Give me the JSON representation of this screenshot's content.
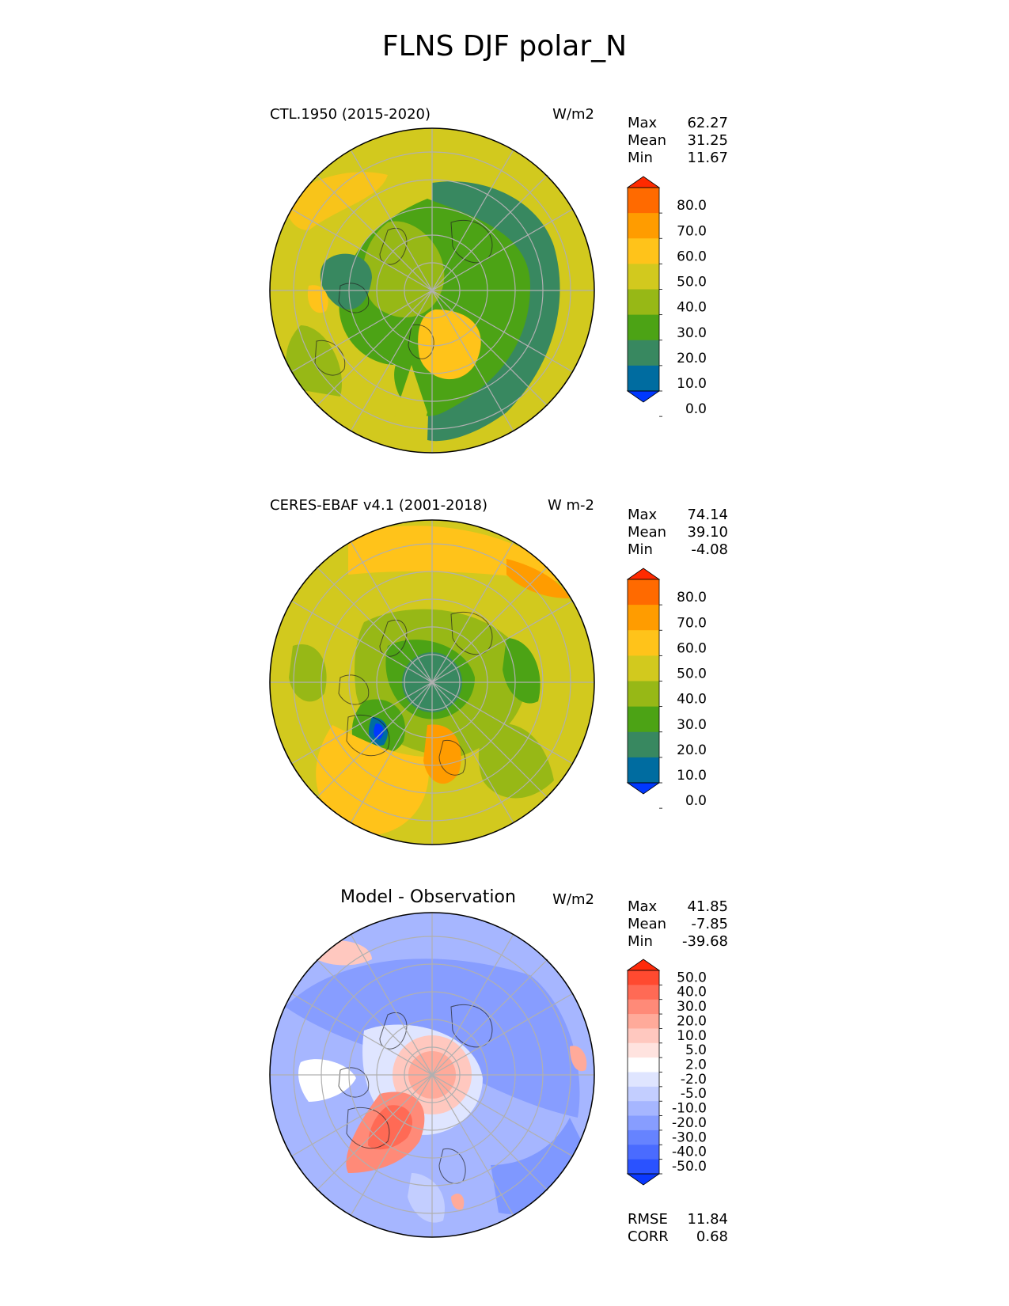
{
  "title": "FLNS DJF polar_N",
  "panels": [
    {
      "subtitle": "CTL.1950 (2015-2020)",
      "units": "W/m2",
      "stats": [
        {
          "label": "Max",
          "value": "62.27"
        },
        {
          "label": "Mean",
          "value": "31.25"
        },
        {
          "label": "Min",
          "value": "11.67"
        }
      ],
      "colorbar": {
        "ticks": [
          "80.0",
          "70.0",
          "60.0",
          "50.0",
          "40.0",
          "30.0",
          "20.0",
          "10.0",
          "0.0"
        ],
        "colors": [
          "#ff2a00",
          "#ff6a00",
          "#ff9c00",
          "#ffc31a",
          "#d2c91e",
          "#97b816",
          "#4ca315",
          "#388860",
          "#006ca0",
          "#0038ff"
        ]
      }
    },
    {
      "subtitle": "CERES-EBAF v4.1 (2001-2018)",
      "units": "W m-2",
      "stats": [
        {
          "label": "Max",
          "value": "74.14"
        },
        {
          "label": "Mean",
          "value": "39.10"
        },
        {
          "label": "Min",
          "value": "-4.08"
        }
      ],
      "colorbar": {
        "ticks": [
          "80.0",
          "70.0",
          "60.0",
          "50.0",
          "40.0",
          "30.0",
          "20.0",
          "10.0",
          "0.0"
        ],
        "colors": [
          "#ff2a00",
          "#ff6a00",
          "#ff9c00",
          "#ffc31a",
          "#d2c91e",
          "#97b816",
          "#4ca315",
          "#388860",
          "#006ca0",
          "#0038ff"
        ]
      }
    },
    {
      "subtitle": "Model - Observation",
      "units": "W/m2",
      "stats": [
        {
          "label": "Max",
          "value": "41.85"
        },
        {
          "label": "Mean",
          "value": "-7.85"
        },
        {
          "label": "Min",
          "value": "-39.68"
        }
      ],
      "extra_stats": [
        {
          "label": "RMSE",
          "value": "11.84"
        },
        {
          "label": "CORR",
          "value": "0.68"
        }
      ],
      "colorbar": {
        "ticks": [
          "50.0",
          "40.0",
          "30.0",
          "20.0",
          "10.0",
          "5.0",
          "2.0",
          "-2.0",
          "-5.0",
          "-10.0",
          "-20.0",
          "-30.0",
          "-40.0",
          "-50.0"
        ],
        "colors": [
          "#ff2a0a",
          "#ff4a30",
          "#ff6a55",
          "#ff8a78",
          "#ffaa9a",
          "#ffc8bf",
          "#ffe3df",
          "#ffffff",
          "#dfe5ff",
          "#c3ceff",
          "#a6b6ff",
          "#879dff",
          "#6683ff",
          "#4a6bff",
          "#2a52ff",
          "#0a38ff"
        ]
      }
    }
  ],
  "chart_data": [
    {
      "type": "heatmap",
      "title": "CTL.1950 (2015-2020)",
      "projection": "north polar stereographic",
      "variable": "FLNS",
      "season": "DJF",
      "units": "W/m2",
      "colorbar_levels": [
        0,
        10,
        20,
        30,
        40,
        50,
        60,
        70,
        80
      ],
      "max": 62.27,
      "mean": 31.25,
      "min": 11.67
    },
    {
      "type": "heatmap",
      "title": "CERES-EBAF v4.1 (2001-2018)",
      "projection": "north polar stereographic",
      "variable": "FLNS",
      "season": "DJF",
      "units": "W m-2",
      "colorbar_levels": [
        0,
        10,
        20,
        30,
        40,
        50,
        60,
        70,
        80
      ],
      "max": 74.14,
      "mean": 39.1,
      "min": -4.08
    },
    {
      "type": "heatmap",
      "title": "Model - Observation",
      "projection": "north polar stereographic",
      "variable": "FLNS",
      "season": "DJF",
      "units": "W/m2",
      "colorbar_levels": [
        -50,
        -40,
        -30,
        -20,
        -10,
        -5,
        -2,
        2,
        5,
        10,
        20,
        30,
        40,
        50
      ],
      "max": 41.85,
      "mean": -7.85,
      "min": -39.68,
      "rmse": 11.84,
      "corr": 0.68
    }
  ]
}
